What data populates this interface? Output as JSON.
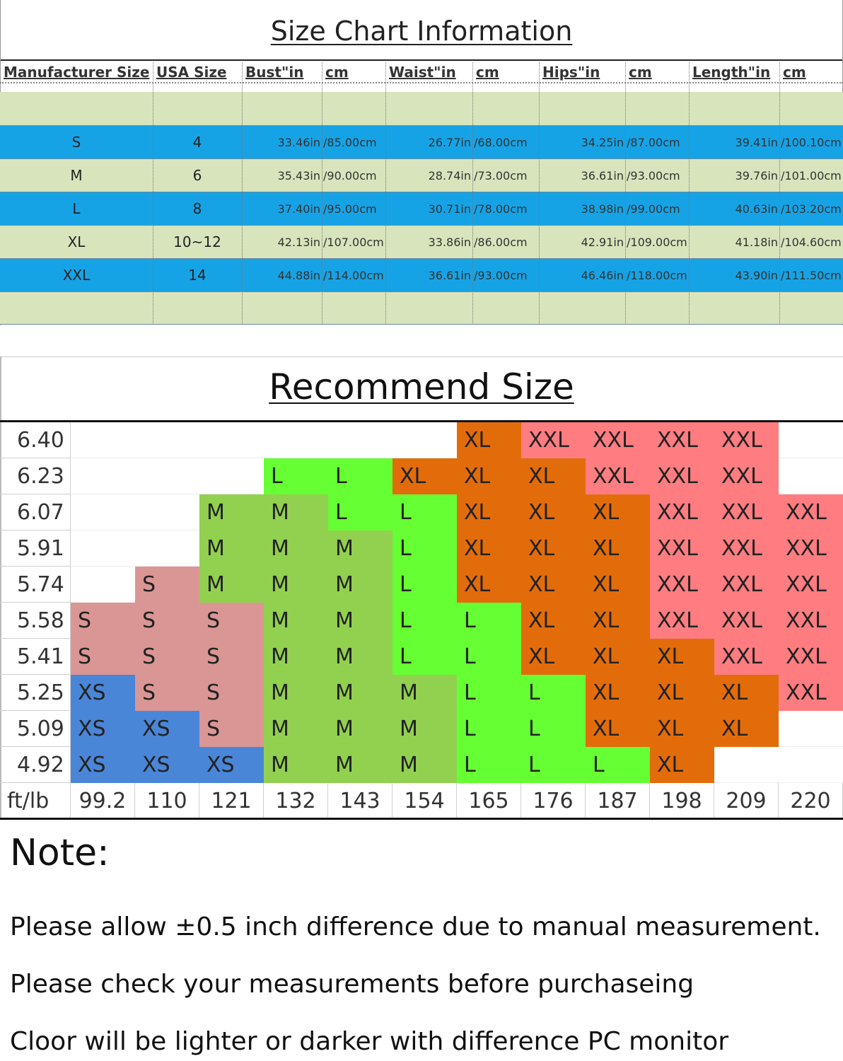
{
  "size_chart": {
    "title": "Size Chart Information",
    "headers": [
      "Manufacturer Size",
      "USA Size",
      "Bust\"in",
      "cm",
      "Waist\"in",
      "cm",
      "Hips\"in",
      "cm",
      "Length\"in",
      "cm"
    ],
    "rows": [
      [
        "S",
        "4",
        "33.46in",
        "/85.00cm",
        "26.77in",
        "/68.00cm",
        "34.25in",
        "/87.00cm",
        "39.41in",
        "/100.10cm"
      ],
      [
        "M",
        "6",
        "35.43in",
        "/90.00cm",
        "28.74in",
        "/73.00cm",
        "36.61in",
        "/93.00cm",
        "39.76in",
        "/101.00cm"
      ],
      [
        "L",
        "8",
        "37.40in",
        "/95.00cm",
        "30.71in",
        "/78.00cm",
        "38.98in",
        "/99.00cm",
        "40.63in",
        "/103.20cm"
      ],
      [
        "XL",
        "10~12",
        "42.13in",
        "/107.00cm",
        "33.86in",
        "/86.00cm",
        "42.91in",
        "/109.00cm",
        "41.18in",
        "/104.60cm"
      ],
      [
        "XXL",
        "14",
        "44.88in",
        "/114.00cm",
        "36.61in",
        "/93.00cm",
        "46.46in",
        "/118.00cm",
        "43.90in",
        "/111.50cm"
      ]
    ]
  },
  "recommend": {
    "title": "Recommend Size",
    "heights": [
      "6.40",
      "6.23",
      "6.07",
      "5.91",
      "5.74",
      "5.58",
      "5.41",
      "5.25",
      "5.09",
      "4.92"
    ],
    "corner": "ft/lb",
    "weights": [
      "99.2",
      "110",
      "121",
      "132",
      "143",
      "154",
      "165",
      "176",
      "187",
      "198",
      "209",
      "220"
    ],
    "grid": [
      [
        null,
        null,
        null,
        null,
        null,
        null,
        "XL",
        "XXL",
        "XXL",
        "XXL",
        "XXL",
        null
      ],
      [
        null,
        null,
        null,
        "L",
        "L",
        "XL",
        "XL",
        "XL",
        "XXL",
        "XXL",
        "XXL",
        null
      ],
      [
        null,
        null,
        "M",
        "M",
        "L",
        "L",
        "XL",
        "XL",
        "XL",
        "XXL",
        "XXL",
        "XXL"
      ],
      [
        null,
        null,
        "M",
        "M",
        "M",
        "L",
        "XL",
        "XL",
        "XL",
        "XXL",
        "XXL",
        "XXL"
      ],
      [
        null,
        "S",
        "M",
        "M",
        "M",
        "L",
        "XL",
        "XL",
        "XL",
        "XXL",
        "XXL",
        "XXL"
      ],
      [
        "S",
        "S",
        "S",
        "M",
        "M",
        "L",
        "L",
        "XL",
        "XL",
        "XXL",
        "XXL",
        "XXL"
      ],
      [
        "S",
        "S",
        "S",
        "M",
        "M",
        "L",
        "L",
        "XL",
        "XL",
        "XL",
        "XXL",
        "XXL"
      ],
      [
        "XS",
        "S",
        "S",
        "M",
        "M",
        "M",
        "L",
        "L",
        "XL",
        "XL",
        "XL",
        "XXL"
      ],
      [
        "XS",
        "XS",
        "S",
        "M",
        "M",
        "M",
        "L",
        "L",
        "XL",
        "XL",
        "XL",
        null
      ],
      [
        "XS",
        "XS",
        "XS",
        "M",
        "M",
        "M",
        "L",
        "L",
        "L",
        "XL",
        null,
        null
      ]
    ],
    "colors": {
      "XS": "#4a86d8",
      "S": "#da9694",
      "M": "#92d050",
      "L": "#66ff33",
      "XL": "#e36c0a",
      "XXL": "#ff7c80"
    }
  },
  "note": {
    "title": "Note:",
    "lines": [
      "Please allow ±0.5 inch difference due to manual measurement.",
      "Please check your measurements before purchaseing",
      "Cloor will be lighter or darker with difference PC monitor"
    ]
  }
}
